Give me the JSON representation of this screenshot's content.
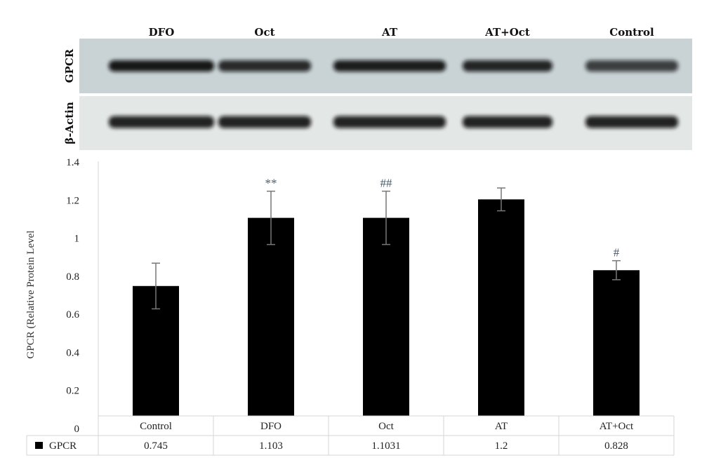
{
  "blot": {
    "lanes": [
      "DFO",
      "Oct",
      "AT",
      "AT+Oct",
      "Control"
    ],
    "rows": [
      {
        "label": "GPCR",
        "band_intensity": [
          0.95,
          0.85,
          0.92,
          0.88,
          0.75
        ]
      },
      {
        "label": "β-Actin",
        "band_intensity": [
          0.9,
          0.9,
          0.9,
          0.9,
          0.9
        ]
      }
    ],
    "colors": {
      "gpcr_bg": "#c9d3d6",
      "actin_bg": "#e3e7e6",
      "band": "#111111"
    }
  },
  "chart_data": {
    "type": "bar",
    "categories": [
      "Control",
      "DFO",
      "Oct",
      "AT",
      "AT+Oct"
    ],
    "series": [
      {
        "name": "GPCR",
        "values": [
          0.745,
          1.103,
          1.1031,
          1.2,
          0.828
        ],
        "errors": [
          0.12,
          0.14,
          0.14,
          0.06,
          0.05
        ],
        "color": "#000000"
      }
    ],
    "table_values": [
      "0.745",
      "1.103",
      "1.1031",
      "1.2",
      "0.828"
    ],
    "annotations": [
      "",
      "**",
      "##",
      "",
      "#"
    ],
    "ylabel": "GPCR (Relative Protein Level",
    "ylim": [
      0,
      1.4
    ],
    "yticks": [
      "0",
      "0.2",
      "0.4",
      "0.6",
      "0.8",
      "1",
      "1.2",
      "1.4"
    ],
    "grid": false,
    "legend": "data-table-bottom"
  }
}
